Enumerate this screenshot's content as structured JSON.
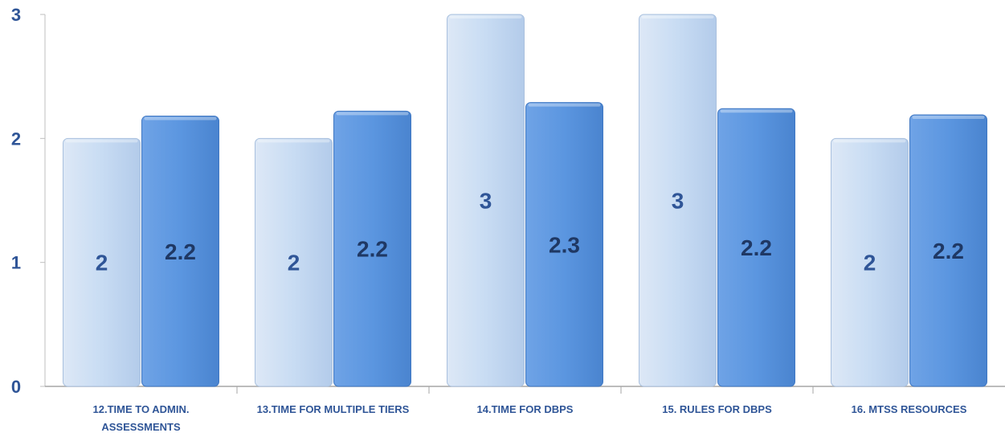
{
  "chart_data": {
    "type": "bar",
    "title": "",
    "xlabel": "",
    "ylabel": "",
    "ylim": [
      0,
      3
    ],
    "yticks": [
      "0",
      "1",
      "2",
      "3"
    ],
    "grid": false,
    "legend": "none",
    "categories": [
      "12.Time to admin. assessments",
      "13.Time for multiple tiers",
      "14.Time for DBPS",
      "15. Rules for DBPS",
      "16. MTSS resources"
    ],
    "category_lines": [
      [
        "12.TIME TO ADMIN.",
        "ASSESSMENTS"
      ],
      [
        "13.TIME FOR MULTIPLE TIERS"
      ],
      [
        "14.TIME FOR DBPS"
      ],
      [
        "15. RULES FOR DBPS"
      ],
      [
        "16. MTSS RESOURCES"
      ]
    ],
    "series": [
      {
        "values": [
          2,
          2,
          3,
          3,
          2
        ],
        "labels": [
          "2",
          "2",
          "3",
          "3",
          "2"
        ],
        "color": "#c5d9f1",
        "label_color": "#2f5597"
      },
      {
        "values": [
          2.18,
          2.22,
          2.29,
          2.24,
          2.19
        ],
        "labels": [
          "2.2",
          "2.2",
          "2.3",
          "2.2",
          "2.2"
        ],
        "color": "#5b96e0",
        "label_color": "#1f3864"
      }
    ]
  }
}
